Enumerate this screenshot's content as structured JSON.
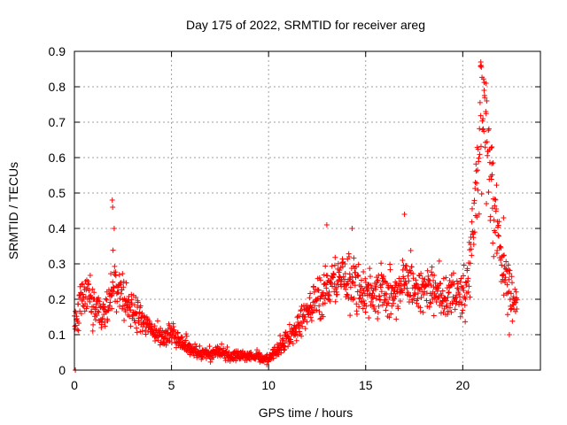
{
  "chart_data": {
    "type": "scatter",
    "title": "Day 175 of 2022, SRMTID for receiver areg",
    "xlabel": "GPS time / hours",
    "ylabel": "SRMTID / TECUs",
    "xlim": [
      0,
      24
    ],
    "ylim": [
      0,
      0.9
    ],
    "x_ticks": [
      0,
      5,
      10,
      15,
      20
    ],
    "x_tick_labels": [
      "0",
      "5",
      "10",
      "15",
      "20"
    ],
    "y_ticks": [
      0,
      0.1,
      0.2,
      0.3,
      0.4,
      0.5,
      0.6,
      0.7,
      0.8,
      0.9
    ],
    "y_tick_labels": [
      "0",
      "0.1",
      "0.2",
      "0.3",
      "0.4",
      "0.5",
      "0.6",
      "0.7",
      "0.8",
      "0.9"
    ],
    "grid": true,
    "marker": "plus",
    "color": "#ff0000",
    "series": [
      {
        "name": "SRMTID",
        "profile": [
          {
            "x": 0.0,
            "y": 0.14
          },
          {
            "x": 0.3,
            "y": 0.2
          },
          {
            "x": 0.6,
            "y": 0.22
          },
          {
            "x": 1.0,
            "y": 0.18
          },
          {
            "x": 1.5,
            "y": 0.15
          },
          {
            "x": 2.0,
            "y": 0.24
          },
          {
            "x": 2.5,
            "y": 0.21
          },
          {
            "x": 3.0,
            "y": 0.17
          },
          {
            "x": 3.5,
            "y": 0.14
          },
          {
            "x": 4.0,
            "y": 0.11
          },
          {
            "x": 4.5,
            "y": 0.09
          },
          {
            "x": 5.0,
            "y": 0.1
          },
          {
            "x": 5.5,
            "y": 0.08
          },
          {
            "x": 6.0,
            "y": 0.06
          },
          {
            "x": 6.5,
            "y": 0.045
          },
          {
            "x": 7.0,
            "y": 0.045
          },
          {
            "x": 7.5,
            "y": 0.05
          },
          {
            "x": 8.0,
            "y": 0.04
          },
          {
            "x": 8.5,
            "y": 0.04
          },
          {
            "x": 9.0,
            "y": 0.04
          },
          {
            "x": 9.5,
            "y": 0.035
          },
          {
            "x": 10.0,
            "y": 0.03
          },
          {
            "x": 10.5,
            "y": 0.06
          },
          {
            "x": 11.0,
            "y": 0.09
          },
          {
            "x": 11.5,
            "y": 0.12
          },
          {
            "x": 12.0,
            "y": 0.16
          },
          {
            "x": 12.5,
            "y": 0.2
          },
          {
            "x": 13.0,
            "y": 0.23
          },
          {
            "x": 13.5,
            "y": 0.25
          },
          {
            "x": 14.0,
            "y": 0.28
          },
          {
            "x": 14.5,
            "y": 0.25
          },
          {
            "x": 15.0,
            "y": 0.2
          },
          {
            "x": 15.5,
            "y": 0.22
          },
          {
            "x": 16.0,
            "y": 0.23
          },
          {
            "x": 16.5,
            "y": 0.21
          },
          {
            "x": 17.0,
            "y": 0.26
          },
          {
            "x": 17.5,
            "y": 0.22
          },
          {
            "x": 18.0,
            "y": 0.24
          },
          {
            "x": 18.5,
            "y": 0.23
          },
          {
            "x": 19.0,
            "y": 0.21
          },
          {
            "x": 19.5,
            "y": 0.22
          },
          {
            "x": 20.0,
            "y": 0.2
          },
          {
            "x": 20.3,
            "y": 0.26
          },
          {
            "x": 20.6,
            "y": 0.45
          },
          {
            "x": 20.9,
            "y": 0.68
          },
          {
            "x": 21.1,
            "y": 0.7
          },
          {
            "x": 21.4,
            "y": 0.58
          },
          {
            "x": 21.7,
            "y": 0.45
          },
          {
            "x": 22.0,
            "y": 0.33
          },
          {
            "x": 22.3,
            "y": 0.25
          },
          {
            "x": 22.6,
            "y": 0.2
          },
          {
            "x": 22.8,
            "y": 0.18
          }
        ],
        "outliers": [
          {
            "x": 0.05,
            "y": 0.0
          },
          {
            "x": 1.95,
            "y": 0.48
          },
          {
            "x": 1.97,
            "y": 0.46
          },
          {
            "x": 2.05,
            "y": 0.4
          },
          {
            "x": 13.0,
            "y": 0.41
          },
          {
            "x": 14.3,
            "y": 0.4
          },
          {
            "x": 17.0,
            "y": 0.44
          },
          {
            "x": 20.93,
            "y": 0.87
          },
          {
            "x": 20.95,
            "y": 0.86
          },
          {
            "x": 21.2,
            "y": 0.81
          },
          {
            "x": 21.1,
            "y": 0.79
          },
          {
            "x": 21.5,
            "y": 0.63
          },
          {
            "x": 22.1,
            "y": 0.43
          },
          {
            "x": 22.4,
            "y": 0.1
          }
        ],
        "sample_count": 1400,
        "x_range": [
          0.0,
          22.8
        ]
      }
    ]
  }
}
